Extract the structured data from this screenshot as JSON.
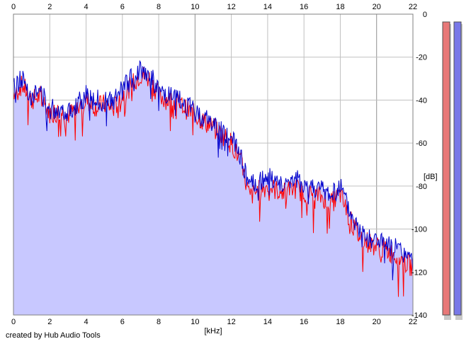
{
  "chart_data": {
    "type": "area",
    "xlabel": "[kHz]",
    "ylabel": "[dB]",
    "xlim": [
      0,
      22
    ],
    "ylim": [
      -140,
      0
    ],
    "x_ticks": [
      "0",
      "2",
      "4",
      "6",
      "8",
      "10",
      "12",
      "14",
      "16",
      "18",
      "20",
      "22"
    ],
    "y_ticks": [
      "0",
      "-20",
      "-40",
      "-60",
      "-80",
      "-100",
      "-120",
      "-140"
    ],
    "grid": true,
    "colors": {
      "left": "#ff0000",
      "right": "#0000cc",
      "fill": "#c8c8ff",
      "grid": "#c0c0c0",
      "grid_major": "#909090"
    },
    "series": [
      {
        "channel": "left",
        "x": [
          0,
          0.5,
          1,
          1.5,
          2,
          2.5,
          3,
          3.5,
          4,
          4.5,
          5,
          5.5,
          6,
          6.5,
          7,
          7.5,
          8,
          8.5,
          9,
          9.5,
          10,
          10.5,
          11,
          11.5,
          12,
          12.5,
          13,
          13.5,
          14,
          14.5,
          15,
          15.5,
          16,
          16.5,
          17,
          17.5,
          18,
          18.5,
          19,
          19.5,
          20,
          20.5,
          21,
          21.5,
          22
        ],
        "y": [
          -36,
          -33,
          -40,
          -38,
          -46,
          -45,
          -47,
          -44,
          -40,
          -43,
          -42,
          -44,
          -38,
          -33,
          -28,
          -30,
          -38,
          -40,
          -41,
          -44,
          -47,
          -50,
          -53,
          -56,
          -60,
          -68,
          -85,
          -82,
          -80,
          -82,
          -83,
          -81,
          -83,
          -84,
          -85,
          -88,
          -84,
          -95,
          -103,
          -106,
          -108,
          -110,
          -112,
          -115,
          -118
        ]
      },
      {
        "channel": "right",
        "x": [
          0,
          0.5,
          1,
          1.5,
          2,
          2.5,
          3,
          3.5,
          4,
          4.5,
          5,
          5.5,
          6,
          6.5,
          7,
          7.5,
          8,
          8.5,
          9,
          9.5,
          10,
          10.5,
          11,
          11.5,
          12,
          12.5,
          13,
          13.5,
          14,
          14.5,
          15,
          15.5,
          16,
          16.5,
          17,
          17.5,
          18,
          18.5,
          19,
          19.5,
          20,
          20.5,
          21,
          21.5,
          22
        ],
        "y": [
          -34,
          -30,
          -38,
          -36,
          -44,
          -44,
          -45,
          -42,
          -38,
          -40,
          -40,
          -41,
          -35,
          -30,
          -25,
          -28,
          -36,
          -38,
          -40,
          -42,
          -46,
          -48,
          -51,
          -54,
          -58,
          -66,
          -80,
          -78,
          -76,
          -78,
          -78,
          -77,
          -79,
          -80,
          -82,
          -84,
          -80,
          -92,
          -100,
          -104,
          -105,
          -107,
          -109,
          -112,
          -116
        ]
      }
    ],
    "level_meters": {
      "left_color": "#e87878",
      "right_color": "#7878e8"
    }
  },
  "footer": {
    "credit": "created by Hub Audio Tools"
  }
}
